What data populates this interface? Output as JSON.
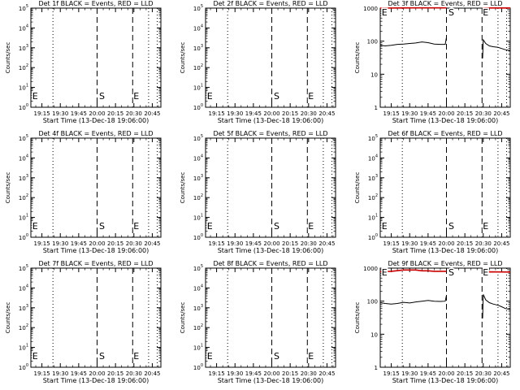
{
  "x_axis": {
    "ticks": [
      {
        "t": 1275,
        "label": "19:15"
      },
      {
        "t": 1290,
        "label": "19:30"
      },
      {
        "t": 1305,
        "label": "19:45"
      },
      {
        "t": 1320,
        "label": "20:00"
      },
      {
        "t": 1335,
        "label": "20:15"
      },
      {
        "t": 1350,
        "label": "20:30"
      },
      {
        "t": 1365,
        "label": "20:45"
      }
    ],
    "range_min": [
      1266,
      1372
    ],
    "xlabel": "Start Time (13-Dec-18 19:06:00)"
  },
  "colors": {
    "events": "#000000",
    "lld": "#cc0000",
    "axes": "#000000",
    "background": "#ffffff"
  },
  "markers": {
    "dotted_min": [
      1284,
      1362,
      1369
    ],
    "dashed_min": [
      1320,
      1349
    ],
    "labels": [
      {
        "min": 1266.5,
        "text": "E"
      },
      {
        "min": 1321,
        "text": "S"
      },
      {
        "min": 1349,
        "text": "E"
      }
    ]
  },
  "chart_data": [
    {
      "type": "line",
      "title": "Det 1f BLACK = Events, RED = LLD",
      "ylabel": "Counts/sec",
      "xlabel": "Start Time (13-Dec-18 19:06:00)",
      "yscale": "log",
      "ylim_exp": [
        0,
        5
      ],
      "ytick_labels": [
        "10^0",
        "10^1",
        "10^2",
        "10^3",
        "10^4",
        "10^5"
      ],
      "series": []
    },
    {
      "type": "line",
      "title": "Det 2f BLACK = Events, RED = LLD",
      "ylabel": "Counts/sec",
      "xlabel": "Start Time (13-Dec-18 19:06:00)",
      "yscale": "log",
      "ylim_exp": [
        0,
        5
      ],
      "ytick_labels": [
        "10^0",
        "10^1",
        "10^2",
        "10^3",
        "10^4",
        "10^5"
      ],
      "series": []
    },
    {
      "type": "line",
      "title": "Det 3f BLACK = Events, RED = LLD",
      "ylabel": "Counts/sec",
      "xlabel": "Start Time (13-Dec-18 19:06:00)",
      "yscale": "log",
      "ylim_exp": [
        0,
        3
      ],
      "ytick_labels": [
        "1",
        "10",
        "100",
        "1000"
      ],
      "series": [
        {
          "color": "#cc0000",
          "segments": [
            [
              [
                1266,
                1000
              ],
              [
                1280,
                1010
              ],
              [
                1300,
                1020
              ],
              [
                1320,
                1020
              ]
            ],
            [
              [
                1349.5,
                1000
              ],
              [
                1355,
                1010
              ],
              [
                1372,
                1010
              ]
            ]
          ]
        },
        {
          "color": "#000000",
          "segments": [
            [
              [
                1266,
                75
              ],
              [
                1270,
                72
              ],
              [
                1275,
                75
              ],
              [
                1280,
                80
              ],
              [
                1285,
                82
              ],
              [
                1290,
                85
              ],
              [
                1295,
                88
              ],
              [
                1300,
                95
              ],
              [
                1305,
                90
              ],
              [
                1310,
                82
              ],
              [
                1315,
                80
              ],
              [
                1319,
                80
              ],
              [
                1320,
                130
              ]
            ],
            [
              [
                1349.5,
                30
              ],
              [
                1350,
                110
              ],
              [
                1352,
                85
              ],
              [
                1355,
                72
              ],
              [
                1358,
                68
              ],
              [
                1362,
                65
              ],
              [
                1365,
                60
              ],
              [
                1368,
                55
              ],
              [
                1372,
                52
              ]
            ]
          ]
        }
      ]
    },
    {
      "type": "line",
      "title": "Det 4f BLACK = Events, RED = LLD",
      "ylabel": "Counts/sec",
      "xlabel": "Start Time (13-Dec-18 19:06:00)",
      "yscale": "log",
      "ylim_exp": [
        0,
        5
      ],
      "ytick_labels": [
        "10^0",
        "10^1",
        "10^2",
        "10^3",
        "10^4",
        "10^5"
      ],
      "series": []
    },
    {
      "type": "line",
      "title": "Det 5f BLACK = Events, RED = LLD",
      "ylabel": "Counts/sec",
      "xlabel": "Start Time (13-Dec-18 19:06:00)",
      "yscale": "log",
      "ylim_exp": [
        0,
        5
      ],
      "ytick_labels": [
        "10^0",
        "10^1",
        "10^2",
        "10^3",
        "10^4",
        "10^5"
      ],
      "series": []
    },
    {
      "type": "line",
      "title": "Det 6f BLACK = Events, RED = LLD",
      "ylabel": "Counts/sec",
      "xlabel": "Start Time (13-Dec-18 19:06:00)",
      "yscale": "log",
      "ylim_exp": [
        0,
        5
      ],
      "ytick_labels": [
        "10^0",
        "10^1",
        "10^2",
        "10^3",
        "10^4",
        "10^5"
      ],
      "series": []
    },
    {
      "type": "line",
      "title": "Det 7f BLACK = Events, RED = LLD",
      "ylabel": "Counts/sec",
      "xlabel": "Start Time (13-Dec-18 19:06:00)",
      "yscale": "log",
      "ylim_exp": [
        0,
        5
      ],
      "ytick_labels": [
        "10^0",
        "10^1",
        "10^2",
        "10^3",
        "10^4",
        "10^5"
      ],
      "series": []
    },
    {
      "type": "line",
      "title": "Det 8f BLACK = Events, RED = LLD",
      "ylabel": "Counts/sec",
      "xlabel": "Start Time (13-Dec-18 19:06:00)",
      "yscale": "log",
      "ylim_exp": [
        0,
        5
      ],
      "ytick_labels": [
        "10^0",
        "10^1",
        "10^2",
        "10^3",
        "10^4",
        "10^5"
      ],
      "series": []
    },
    {
      "type": "line",
      "title": "Det 9f BLACK = Events, RED = LLD",
      "ylabel": "Counts/sec",
      "xlabel": "Start Time (13-Dec-18 19:06:00)",
      "yscale": "log",
      "ylim_exp": [
        0,
        3
      ],
      "ytick_labels": [
        "1",
        "10",
        "100",
        "1000"
      ],
      "series": [
        {
          "color": "#cc0000",
          "segments": [
            [
              [
                1266,
                780
              ],
              [
                1275,
                800
              ],
              [
                1285,
                880
              ],
              [
                1295,
                880
              ],
              [
                1300,
                830
              ],
              [
                1305,
                830
              ],
              [
                1310,
                800
              ],
              [
                1320,
                800
              ]
            ],
            [
              [
                1349.5,
                750
              ],
              [
                1355,
                770
              ],
              [
                1372,
                760
              ]
            ]
          ]
        },
        {
          "color": "#000000",
          "segments": [
            [
              [
                1266,
                90
              ],
              [
                1270,
                85
              ],
              [
                1275,
                82
              ],
              [
                1280,
                85
              ],
              [
                1285,
                92
              ],
              [
                1290,
                88
              ],
              [
                1295,
                95
              ],
              [
                1300,
                100
              ],
              [
                1305,
                105
              ],
              [
                1310,
                100
              ],
              [
                1315,
                98
              ],
              [
                1319,
                100
              ],
              [
                1320,
                150
              ]
            ],
            [
              [
                1349.5,
                30
              ],
              [
                1350,
                160
              ],
              [
                1352,
                110
              ],
              [
                1355,
                90
              ],
              [
                1358,
                82
              ],
              [
                1362,
                75
              ],
              [
                1365,
                68
              ],
              [
                1368,
                60
              ],
              [
                1372,
                56
              ]
            ]
          ]
        }
      ]
    }
  ]
}
